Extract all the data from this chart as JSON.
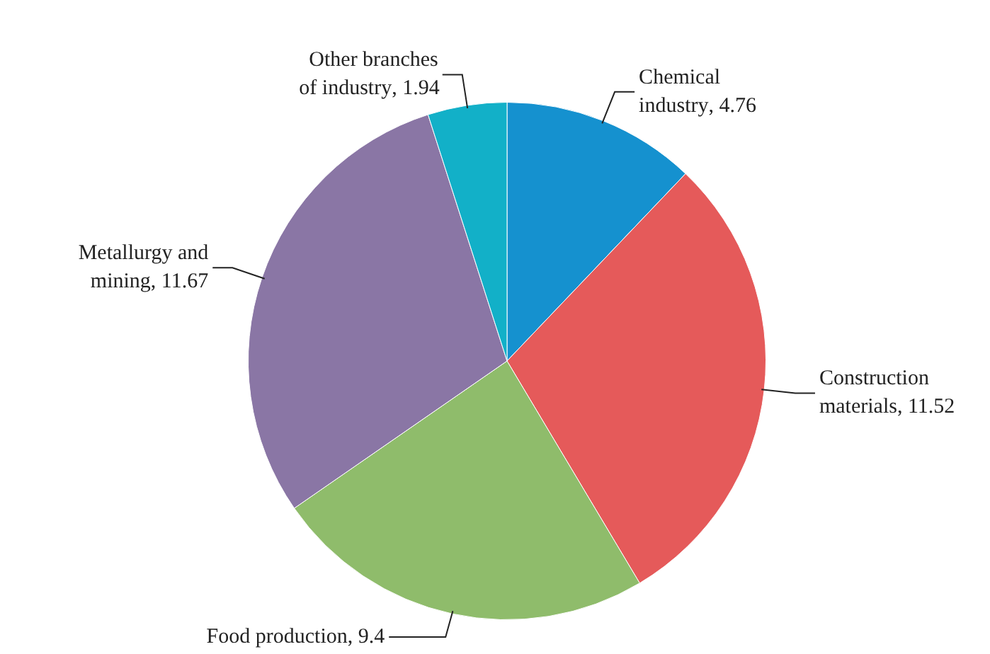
{
  "chart_data": {
    "type": "pie",
    "categories": [
      "Chemical industry",
      "Construction materials",
      "Food production",
      "Metallurgy and mining",
      "Other branches of industry"
    ],
    "values": [
      4.76,
      11.52,
      9.4,
      11.67,
      1.94
    ],
    "value_labels": [
      ", 4.76",
      ", 11.52",
      ", 9.4",
      ", 11.67",
      ", 1.94"
    ],
    "colors": [
      "#1591cf",
      "#e55a5a",
      "#8fbc6b",
      "#8a76a5",
      "#12b0c8"
    ],
    "legend": false
  }
}
